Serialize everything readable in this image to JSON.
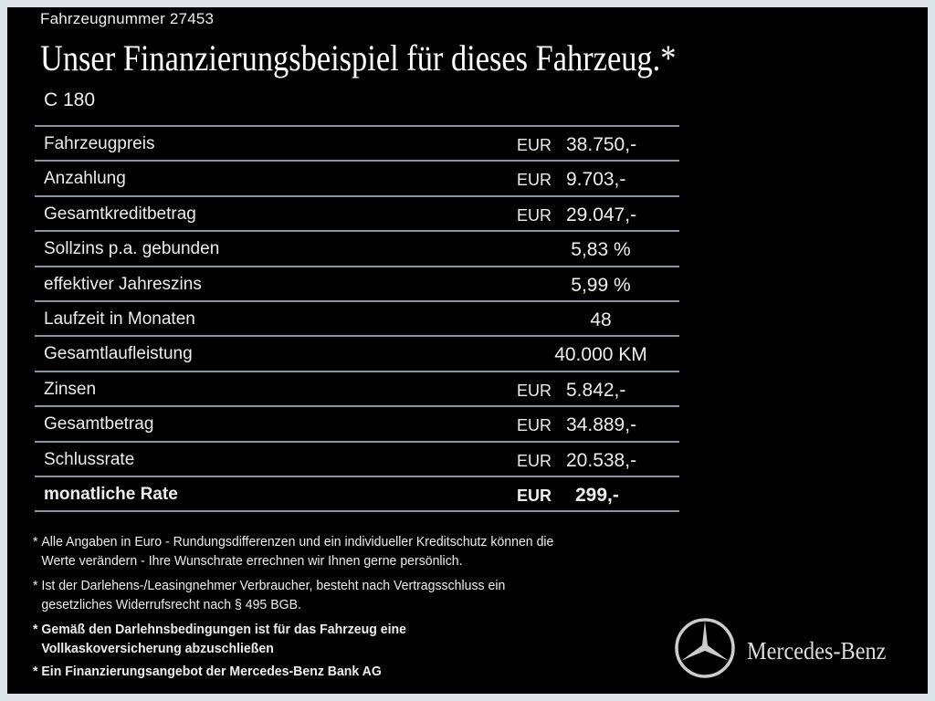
{
  "vehicle_number": "Fahrzeugnummer  27453",
  "title": "Unser Finanzierungsbeispiel für dieses Fahrzeug.*",
  "model": "C 180",
  "rows": [
    {
      "label": "Fahrzeugpreis",
      "currency": "EUR",
      "value": "38.750,-"
    },
    {
      "label": "Anzahlung",
      "currency": "EUR",
      "value": "9.703,-"
    },
    {
      "label": "Gesamtkreditbetrag",
      "currency": "EUR",
      "value": "29.047,-"
    },
    {
      "label": "Sollzins p.a. gebunden",
      "currency": "",
      "value": "5,83 %"
    },
    {
      "label": "effektiver Jahreszins",
      "currency": "",
      "value": "5,99 %"
    },
    {
      "label": "Laufzeit in Monaten",
      "currency": "",
      "value": "48"
    },
    {
      "label": "Gesamtlaufleistung",
      "currency": "",
      "value": "40.000 KM"
    },
    {
      "label": "Zinsen",
      "currency": "EUR",
      "value": "5.842,-"
    },
    {
      "label": "Gesamtbetrag",
      "currency": "EUR",
      "value": "34.889,-"
    },
    {
      "label": "Schlussrate",
      "currency": "EUR",
      "value": "20.538,-"
    },
    {
      "label": "monatliche Rate",
      "currency": "EUR",
      "value": "299,-"
    }
  ],
  "notes": [
    {
      "l1": "Alle Angaben in Euro - Rundungsdifferenzen und ein individueller Kreditschutz können die",
      "l2": "Werte verändern - Ihre Wunschrate errechnen wir Ihnen gerne persönlich."
    },
    {
      "l1": "Ist der Darlehens-/Leasingnehmer Verbraucher, besteht nach Vertragsschluss ein",
      "l2": "gesetzliches  Widerrufsrecht nach § 495 BGB."
    },
    {
      "l1": "Gemäß den Darlehnsbedingungen ist für das Fahrzeug eine",
      "l2": "Vollkaskoversicherung abzuschließen"
    },
    {
      "l1": "Ein Finanzierungsangebot der Mercedes-Benz Bank AG",
      "l2": ""
    }
  ],
  "note_marker": "*",
  "brand": "Mercedes-Benz",
  "logo_icon": "three-pointed-star"
}
